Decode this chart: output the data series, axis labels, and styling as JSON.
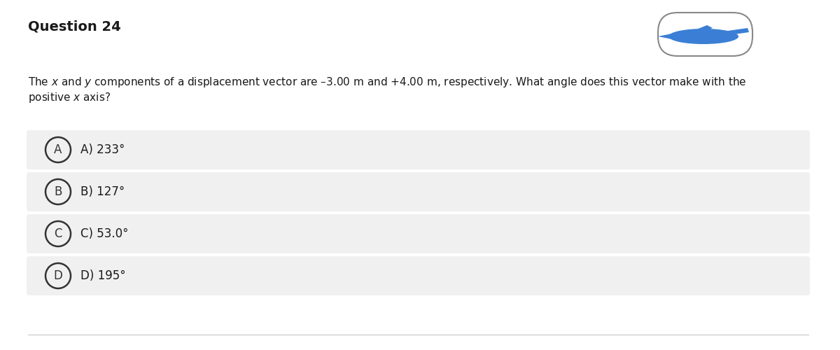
{
  "title": "Question 24",
  "q_line1": "The $x$ and $y$ components of a displacement vector are –3.00 m and +4.00 m, respectively. What angle does this vector make with the",
  "q_line2": "positive $x$ axis?",
  "options": [
    {
      "label": "A",
      "text": "A) 233°"
    },
    {
      "label": "B",
      "text": "B) 127°"
    },
    {
      "label": "C",
      "text": "C) 53.0°"
    },
    {
      "label": "D",
      "text": "D) 195°"
    }
  ],
  "bg_color": "#ffffff",
  "option_bg_color": "#f0f0f0",
  "title_fontsize": 14,
  "question_fontsize": 11,
  "option_fontsize": 12,
  "circle_color": "#333333",
  "text_color": "#1a1a1a",
  "bottom_line_color": "#cccccc",
  "pill_box_color": "#888888",
  "airplane_color": "#3a7fd5"
}
